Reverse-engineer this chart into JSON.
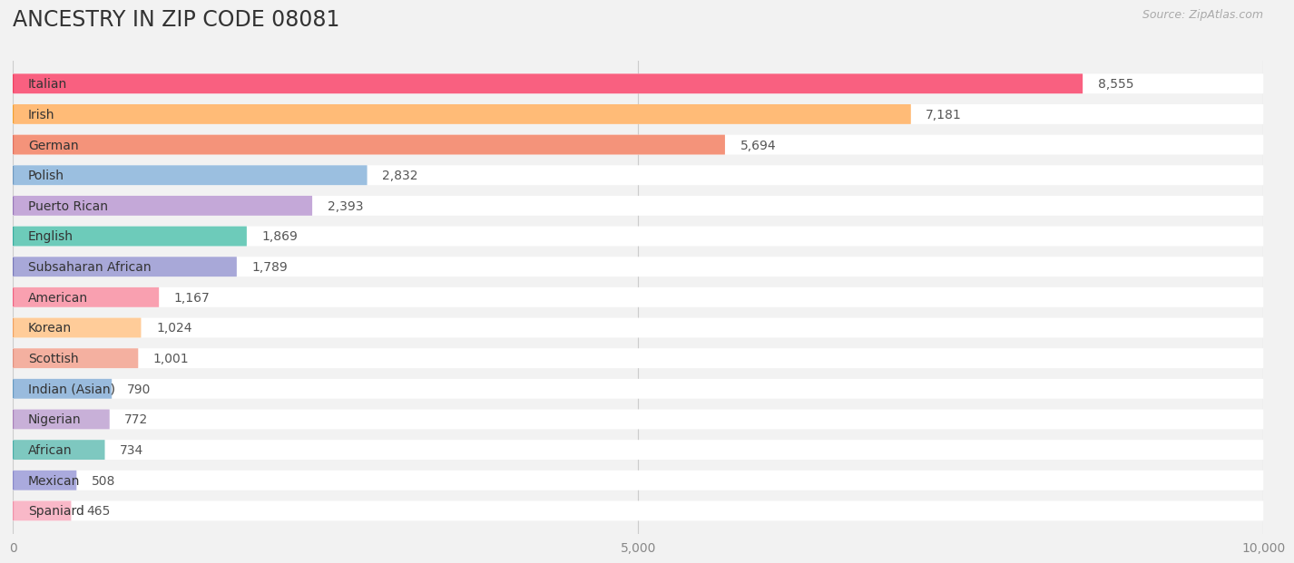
{
  "title": "ANCESTRY IN ZIP CODE 08081",
  "source_text": "Source: ZipAtlas.com",
  "categories": [
    "Italian",
    "Irish",
    "German",
    "Polish",
    "Puerto Rican",
    "English",
    "Subsaharan African",
    "American",
    "Korean",
    "Scottish",
    "Indian (Asian)",
    "Nigerian",
    "African",
    "Mexican",
    "Spaniard"
  ],
  "values": [
    8555,
    7181,
    5694,
    2832,
    2393,
    1869,
    1789,
    1167,
    1024,
    1001,
    790,
    772,
    734,
    508,
    465
  ],
  "bar_colors": [
    "#F96080",
    "#FFBB77",
    "#F4937A",
    "#9BBFE0",
    "#C4A8D8",
    "#6DCBBA",
    "#A8A8D8",
    "#F9A0B0",
    "#FFCC99",
    "#F4B0A0",
    "#99BBDD",
    "#C8B0D8",
    "#7EC8C0",
    "#AAAADD",
    "#F9B8C8"
  ],
  "circle_colors": [
    "#F04060",
    "#F0A030",
    "#E07060",
    "#7099C0",
    "#9878B8",
    "#3AABA0",
    "#7878B8",
    "#F06080",
    "#F0A060",
    "#E09080",
    "#6699C0",
    "#A880B8",
    "#4AACA8",
    "#8888C8",
    "#F090A8"
  ],
  "xlim": [
    0,
    10000
  ],
  "xticks": [
    0,
    5000,
    10000
  ],
  "xticklabels": [
    "0",
    "5,000",
    "10,000"
  ],
  "background_color": "#f2f2f2",
  "bar_bg_color": "#ffffff",
  "title_fontsize": 17,
  "value_fontsize": 10,
  "label_fontsize": 10
}
